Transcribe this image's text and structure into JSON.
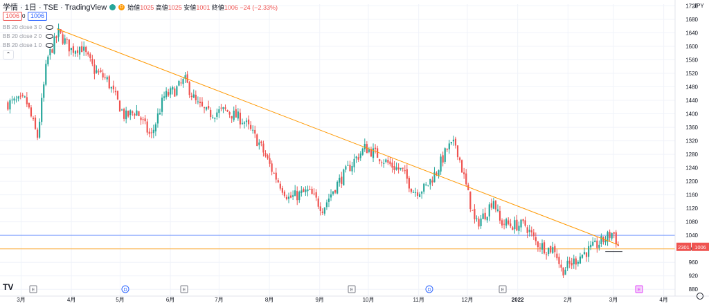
{
  "header": {
    "symbol_title": "学情 · 1日 · TSE · TradingView",
    "status_dot_label": "D",
    "ohlc": [
      {
        "label": "始値",
        "value": "1025"
      },
      {
        "label": "高値",
        "value": "1025"
      },
      {
        "label": "安値",
        "value": "1001"
      },
      {
        "label": "終値",
        "value": "1006"
      }
    ],
    "change": "−24 (−2.33%)",
    "bid_price": "1006",
    "spread": "0",
    "ask_price": "1006"
  },
  "indicators": [
    "BB 20 close 3 0",
    "BB 20 close 2 0",
    "BB 20 close 1 0"
  ],
  "currency": "JPY",
  "price_badges": {
    "volume": "2301",
    "last_price": "1006"
  },
  "colors": {
    "up": "#26a69a",
    "down": "#ef5350",
    "trendline": "#ff9800",
    "hline_blue": "#2962ff",
    "hline_black": "#131722",
    "event_E": "#787b86",
    "event_D": "#2962ff",
    "event_E_upcoming": "#e040fb"
  },
  "event_markers": [
    {
      "label": "E",
      "x_month": "3月"
    },
    {
      "label": "D",
      "x_month": "5月"
    },
    {
      "label": "E",
      "x_month": "6月"
    },
    {
      "label": "E",
      "x_month": "9月"
    },
    {
      "label": "D",
      "x_month": "11月"
    },
    {
      "label": "E",
      "x_month": "12月"
    },
    {
      "label": "E",
      "x_month": "3月"
    }
  ],
  "chart_data": {
    "type": "candlestick",
    "title": "学情 · 1日 · TSE",
    "y_unit": "JPY",
    "ylim": [
      860,
      1725
    ],
    "y_ticks": [
      880,
      920,
      960,
      1000,
      1040,
      1080,
      1120,
      1160,
      1200,
      1240,
      1280,
      1320,
      1360,
      1400,
      1440,
      1480,
      1520,
      1560,
      1600,
      1640,
      1680,
      1720
    ],
    "x_ticks": [
      "3月",
      "4月",
      "5月",
      "6月",
      "7月",
      "8月",
      "9月",
      "10月",
      "11月",
      "12月",
      "2022",
      "2月",
      "3月",
      "4月"
    ],
    "grid": true,
    "trendline": {
      "from": {
        "date": "2021-03-23",
        "price": 1652
      },
      "to": {
        "date": "2022-03-04",
        "price": 1012
      }
    },
    "horizontal_lines": [
      {
        "price": 1040,
        "color": "blue"
      },
      {
        "price": 1000,
        "color": "orange"
      },
      {
        "price": 992,
        "color": "black",
        "from_date": "2022-02-24"
      }
    ],
    "waypoints": [
      {
        "date": "2021-02-20",
        "close": 1430
      },
      {
        "date": "2021-03-04",
        "close": 1440
      },
      {
        "date": "2021-03-11",
        "close": 1330
      },
      {
        "date": "2021-03-17",
        "close": 1560
      },
      {
        "date": "2021-03-24",
        "close": 1640
      },
      {
        "date": "2021-04-01",
        "close": 1590
      },
      {
        "date": "2021-04-07",
        "close": 1600
      },
      {
        "date": "2021-04-15",
        "close": 1530
      },
      {
        "date": "2021-04-23",
        "close": 1500
      },
      {
        "date": "2021-05-04",
        "close": 1390
      },
      {
        "date": "2021-05-11",
        "close": 1410
      },
      {
        "date": "2021-05-20",
        "close": 1330
      },
      {
        "date": "2021-05-28",
        "close": 1450
      },
      {
        "date": "2021-06-04",
        "close": 1470
      },
      {
        "date": "2021-06-10",
        "close": 1500
      },
      {
        "date": "2021-06-17",
        "close": 1430
      },
      {
        "date": "2021-06-24",
        "close": 1400
      },
      {
        "date": "2021-07-05",
        "close": 1410
      },
      {
        "date": "2021-07-16",
        "close": 1380
      },
      {
        "date": "2021-07-26",
        "close": 1310
      },
      {
        "date": "2021-08-04",
        "close": 1220
      },
      {
        "date": "2021-08-13",
        "close": 1150
      },
      {
        "date": "2021-08-25",
        "close": 1170
      },
      {
        "date": "2021-09-03",
        "close": 1120
      },
      {
        "date": "2021-09-10",
        "close": 1180
      },
      {
        "date": "2021-09-22",
        "close": 1260
      },
      {
        "date": "2021-09-29",
        "close": 1300
      },
      {
        "date": "2021-10-06",
        "close": 1280
      },
      {
        "date": "2021-10-14",
        "close": 1250
      },
      {
        "date": "2021-10-22",
        "close": 1230
      },
      {
        "date": "2021-10-29",
        "close": 1170
      },
      {
        "date": "2021-11-05",
        "close": 1180
      },
      {
        "date": "2021-11-12",
        "close": 1230
      },
      {
        "date": "2021-11-19",
        "close": 1300
      },
      {
        "date": "2021-11-24",
        "close": 1310
      },
      {
        "date": "2021-11-30",
        "close": 1190
      },
      {
        "date": "2021-12-06",
        "close": 1070
      },
      {
        "date": "2021-12-13",
        "close": 1110
      },
      {
        "date": "2021-12-17",
        "close": 1150
      },
      {
        "date": "2021-12-21",
        "close": 1080
      },
      {
        "date": "2021-12-28",
        "close": 1070
      },
      {
        "date": "2022-01-06",
        "close": 1070
      },
      {
        "date": "2022-01-12",
        "close": 1020
      },
      {
        "date": "2022-01-19",
        "close": 1000
      },
      {
        "date": "2022-01-24",
        "close": 1000
      },
      {
        "date": "2022-01-28",
        "close": 935
      },
      {
        "date": "2022-02-04",
        "close": 960
      },
      {
        "date": "2022-02-10",
        "close": 985
      },
      {
        "date": "2022-02-17",
        "close": 1005
      },
      {
        "date": "2022-02-24",
        "close": 1030
      },
      {
        "date": "2022-03-01",
        "close": 1050
      },
      {
        "date": "2022-03-04",
        "close": 1006
      }
    ]
  }
}
